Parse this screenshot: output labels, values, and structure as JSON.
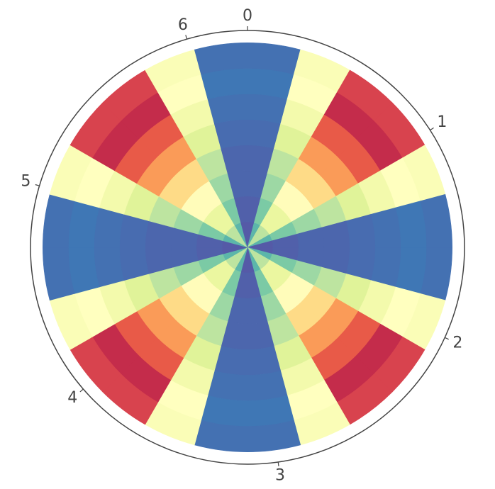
{
  "chart_data": {
    "type": "polar_heatmap",
    "xticks": [
      0,
      1,
      2,
      3,
      4,
      5,
      6
    ],
    "rlim": [
      0,
      1.06
    ],
    "clim": [
      0,
      1
    ],
    "colormap": [
      "#5e4fa2",
      "#3288bd",
      "#66c2a5",
      "#abdda4",
      "#e6f598",
      "#ffffbf",
      "#fee08b",
      "#fdae61",
      "#f46d43",
      "#d53e4f",
      "#9e0142"
    ],
    "values": [
      [
        0.02,
        0.03,
        0.04,
        0.04,
        0.05,
        0.06,
        0.07,
        0.06
      ],
      [
        0.18,
        0.23,
        0.28,
        0.33,
        0.39,
        0.45,
        0.5,
        0.48
      ],
      [
        0.33,
        0.42,
        0.51,
        0.61,
        0.73,
        0.84,
        0.93,
        0.89
      ],
      [
        0.33,
        0.42,
        0.51,
        0.61,
        0.73,
        0.84,
        0.93,
        0.89
      ],
      [
        0.18,
        0.23,
        0.28,
        0.33,
        0.39,
        0.45,
        0.5,
        0.48
      ],
      [
        0.02,
        0.03,
        0.04,
        0.04,
        0.05,
        0.06,
        0.07,
        0.06
      ],
      [
        0.02,
        0.03,
        0.04,
        0.04,
        0.05,
        0.06,
        0.07,
        0.06
      ],
      [
        0.18,
        0.23,
        0.28,
        0.33,
        0.39,
        0.45,
        0.5,
        0.48
      ],
      [
        0.33,
        0.42,
        0.51,
        0.61,
        0.73,
        0.84,
        0.93,
        0.89
      ],
      [
        0.33,
        0.42,
        0.51,
        0.61,
        0.73,
        0.84,
        0.93,
        0.89
      ],
      [
        0.18,
        0.23,
        0.28,
        0.33,
        0.39,
        0.45,
        0.5,
        0.48
      ],
      [
        0.02,
        0.03,
        0.04,
        0.04,
        0.05,
        0.06,
        0.07,
        0.06
      ],
      [
        0.02,
        0.03,
        0.04,
        0.04,
        0.05,
        0.06,
        0.07,
        0.06
      ],
      [
        0.18,
        0.23,
        0.28,
        0.33,
        0.39,
        0.45,
        0.5,
        0.48
      ],
      [
        0.33,
        0.42,
        0.51,
        0.61,
        0.73,
        0.84,
        0.93,
        0.89
      ],
      [
        0.33,
        0.42,
        0.51,
        0.61,
        0.73,
        0.84,
        0.93,
        0.89
      ],
      [
        0.18,
        0.23,
        0.28,
        0.33,
        0.39,
        0.45,
        0.5,
        0.48
      ],
      [
        0.02,
        0.03,
        0.04,
        0.04,
        0.05,
        0.06,
        0.07,
        0.06
      ],
      [
        0.02,
        0.03,
        0.04,
        0.04,
        0.05,
        0.06,
        0.07,
        0.06
      ],
      [
        0.18,
        0.23,
        0.28,
        0.33,
        0.39,
        0.45,
        0.5,
        0.48
      ],
      [
        0.33,
        0.42,
        0.51,
        0.61,
        0.73,
        0.84,
        0.93,
        0.89
      ],
      [
        0.33,
        0.42,
        0.51,
        0.61,
        0.73,
        0.84,
        0.93,
        0.89
      ],
      [
        0.18,
        0.23,
        0.28,
        0.33,
        0.39,
        0.45,
        0.5,
        0.48
      ],
      [
        0.02,
        0.03,
        0.04,
        0.04,
        0.05,
        0.06,
        0.07,
        0.06
      ]
    ]
  }
}
